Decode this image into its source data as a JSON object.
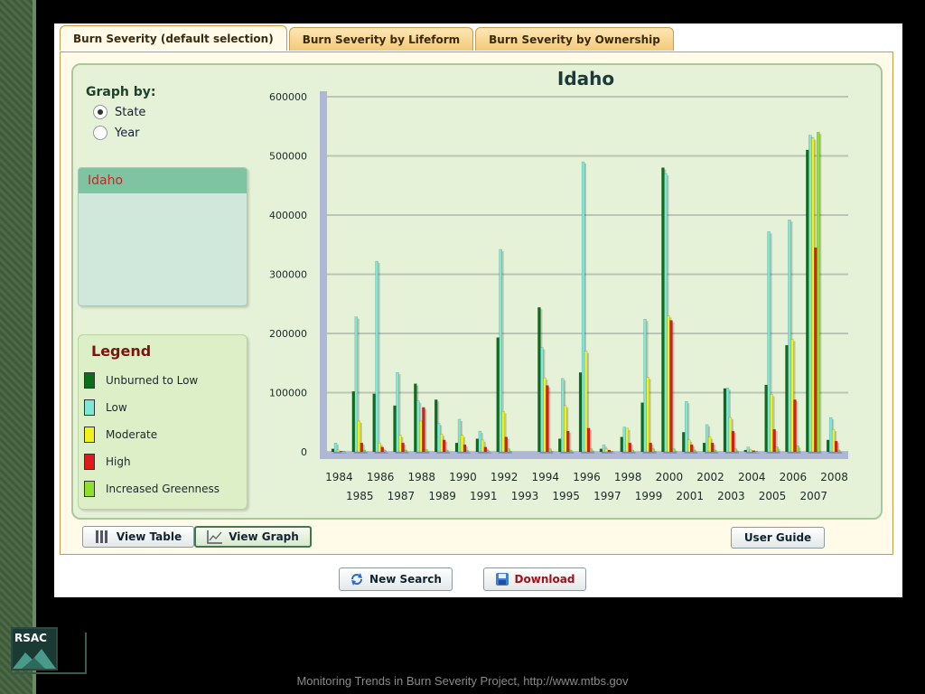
{
  "tabs": [
    "Burn Severity (default selection)",
    "Burn Severity by Lifeform",
    "Burn Severity by Ownership"
  ],
  "graph_by": {
    "title": "Graph by:",
    "options": [
      "State",
      "Year"
    ],
    "selected": "State"
  },
  "state_list": {
    "selected": "Idaho"
  },
  "legend": {
    "title": "Legend",
    "items": [
      {
        "label": "Unburned to Low",
        "color": "#0b6e1a"
      },
      {
        "label": "Low",
        "color": "#7ee8d6"
      },
      {
        "label": "Moderate",
        "color": "#f2f21a"
      },
      {
        "label": "High",
        "color": "#e01a1a"
      },
      {
        "label": "Increased Greenness",
        "color": "#8ee02a"
      }
    ]
  },
  "buttons": {
    "view_table": "View Table",
    "view_graph": "View Graph",
    "user_guide": "User Guide",
    "new_search": "New Search",
    "download": "Download"
  },
  "footer": "Monitoring Trends in Burn Severity Project, http://www.mtbs.gov",
  "logo": "RSAC",
  "chart_data": {
    "type": "bar",
    "title": "Idaho",
    "ylim": [
      0,
      600000
    ],
    "yticks": [
      "600000",
      "500000",
      "400000",
      "300000",
      "200000",
      "100000",
      "0"
    ],
    "categories": [
      "1984",
      "1985",
      "1986",
      "1987",
      "1988",
      "1989",
      "1990",
      "1991",
      "1992",
      "1993",
      "1994",
      "1995",
      "1996",
      "1997",
      "1998",
      "1999",
      "2000",
      "2001",
      "2002",
      "2003",
      "2004",
      "2005",
      "2006",
      "2007",
      "2008"
    ],
    "series": [
      {
        "name": "Unburned to Low",
        "color": "#0b6e1a",
        "values": [
          5000,
          102000,
          98000,
          78000,
          115000,
          88000,
          15000,
          22000,
          193000,
          0,
          244000,
          22000,
          134000,
          5000,
          25000,
          83000,
          480000,
          33000,
          15000,
          107000,
          3000,
          113000,
          180000,
          510000,
          20000
        ]
      },
      {
        "name": "Low",
        "color": "#7ee8d6",
        "values": [
          15000,
          228000,
          322000,
          134000,
          86000,
          48000,
          55000,
          35000,
          342000,
          0,
          176000,
          124000,
          490000,
          12000,
          42000,
          224000,
          470000,
          85000,
          46000,
          108000,
          8000,
          372000,
          392000,
          535000,
          58000
        ]
      },
      {
        "name": "Moderate",
        "color": "#f2f21a",
        "values": [
          3000,
          52000,
          15000,
          28000,
          52000,
          30000,
          28000,
          20000,
          68000,
          0,
          125000,
          78000,
          170000,
          5000,
          40000,
          126000,
          230000,
          20000,
          25000,
          58000,
          3000,
          97000,
          190000,
          530000,
          38000
        ]
      },
      {
        "name": "High",
        "color": "#e01a1a",
        "values": [
          1000,
          15000,
          8000,
          15000,
          75000,
          20000,
          12000,
          8000,
          25000,
          0,
          112000,
          35000,
          40000,
          3000,
          15000,
          15000,
          222000,
          12000,
          15000,
          35000,
          2000,
          38000,
          88000,
          345000,
          18000
        ]
      },
      {
        "name": "Increased Greenness",
        "color": "#8ee02a",
        "values": [
          1000,
          3000,
          2000,
          3000,
          4000,
          3000,
          2000,
          2000,
          5000,
          0,
          5000,
          3000,
          5000,
          1000,
          3000,
          5000,
          5000,
          3000,
          3000,
          5000,
          1000,
          8000,
          10000,
          540000,
          3000
        ]
      }
    ]
  }
}
